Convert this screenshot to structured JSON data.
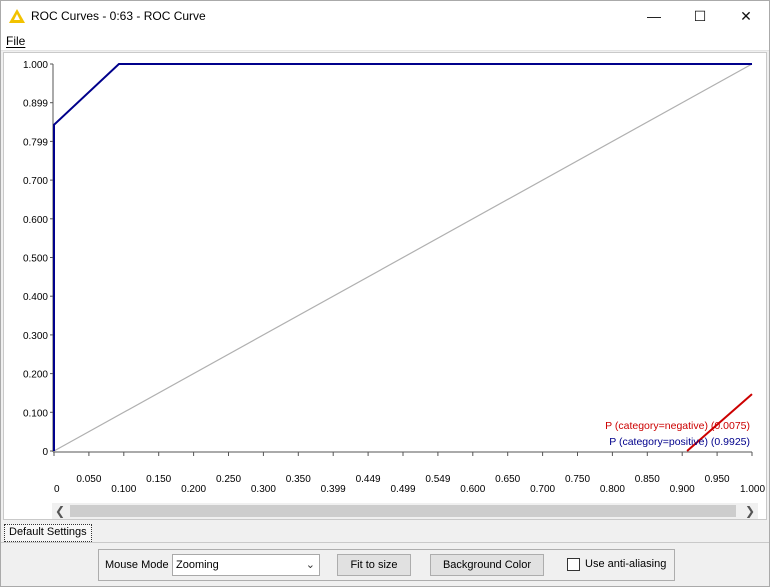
{
  "window": {
    "title": "ROC Curves - 0:63 - ROC Curve",
    "minimize": "—",
    "maximize": "☐",
    "close": "✕"
  },
  "menu": {
    "file": "File"
  },
  "chart_data": {
    "type": "line",
    "title": "",
    "xlabel": "",
    "ylabel": "",
    "xlim": [
      0,
      1.0
    ],
    "ylim": [
      0,
      1.0
    ],
    "x_ticks": [
      "0",
      "0.050",
      "0.100",
      "0.150",
      "0.200",
      "0.250",
      "0.300",
      "0.350",
      "0.399",
      "0.449",
      "0.499",
      "0.549",
      "0.600",
      "0.650",
      "0.700",
      "0.750",
      "0.800",
      "0.850",
      "0.900",
      "0.950",
      "1.000"
    ],
    "y_ticks": [
      "0",
      "0.100",
      "0.200",
      "0.300",
      "0.400",
      "0.500",
      "0.600",
      "0.700",
      "0.799",
      "0.899",
      "1.000"
    ],
    "grid": false,
    "legend_position": "bottom-right",
    "series": [
      {
        "name": "P (category=negative) (0.0075)",
        "color": "#cc0000",
        "x": [
          0.907,
          1.0
        ],
        "y": [
          0.0,
          0.147
        ]
      },
      {
        "name": "P (category=positive) (0.9925)",
        "color": "#00008b",
        "x": [
          0.0,
          0.0,
          0.093,
          1.0
        ],
        "y": [
          0.0,
          0.843,
          1.0,
          1.0
        ]
      },
      {
        "name": "",
        "color": "#b0b0b0",
        "x": [
          0.0,
          1.0
        ],
        "y": [
          0.0,
          1.0
        ]
      }
    ]
  },
  "bottom": {
    "tab_label": "Default Settings",
    "mouse_mode_label": "Mouse Mode",
    "mouse_mode_value": "Zooming",
    "fit_button": "Fit to size",
    "bg_button": "Background Color",
    "antialias_label": "Use anti-aliasing",
    "antialias_checked": false
  }
}
